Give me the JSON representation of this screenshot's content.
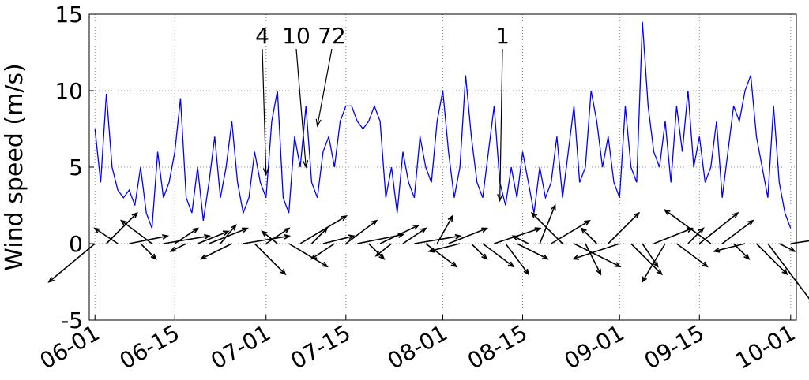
{
  "chart_data": {
    "type": "line",
    "ylabel": "Wind speed (m/s)",
    "ylim": [
      -5,
      15
    ],
    "yticks": [
      -5,
      0,
      5,
      10,
      15
    ],
    "xlim": [
      "05-31",
      "10-02"
    ],
    "xticks": [
      "06-01",
      "06-15",
      "07-01",
      "07-15",
      "08-01",
      "08-15",
      "09-01",
      "09-15",
      "10-01"
    ],
    "grid": true,
    "color": "#0000ff",
    "x": [
      "06-01",
      "06-02",
      "06-03",
      "06-04",
      "06-05",
      "06-06",
      "06-07",
      "06-08",
      "06-09",
      "06-10",
      "06-11",
      "06-12",
      "06-13",
      "06-14",
      "06-15",
      "06-16",
      "06-17",
      "06-18",
      "06-19",
      "06-20",
      "06-21",
      "06-22",
      "06-23",
      "06-24",
      "06-25",
      "06-26",
      "06-27",
      "06-28",
      "06-29",
      "06-30",
      "07-01",
      "07-02",
      "07-03",
      "07-04",
      "07-05",
      "07-06",
      "07-07",
      "07-08",
      "07-09",
      "07-10",
      "07-11",
      "07-12",
      "07-13",
      "07-14",
      "07-15",
      "07-16",
      "07-17",
      "07-18",
      "07-19",
      "07-20",
      "07-21",
      "07-22",
      "07-23",
      "07-24",
      "07-25",
      "07-26",
      "07-27",
      "07-28",
      "07-29",
      "07-30",
      "07-31",
      "08-01",
      "08-02",
      "08-03",
      "08-04",
      "08-05",
      "08-06",
      "08-07",
      "08-08",
      "08-09",
      "08-10",
      "08-11",
      "08-12",
      "08-13",
      "08-14",
      "08-15",
      "08-16",
      "08-17",
      "08-18",
      "08-19",
      "08-20",
      "08-21",
      "08-22",
      "08-23",
      "08-24",
      "08-25",
      "08-26",
      "08-27",
      "08-28",
      "08-29",
      "08-30",
      "08-31",
      "09-01",
      "09-02",
      "09-03",
      "09-04",
      "09-05",
      "09-06",
      "09-07",
      "09-08",
      "09-09",
      "09-10",
      "09-11",
      "09-12",
      "09-13",
      "09-14",
      "09-15",
      "09-16",
      "09-17",
      "09-18",
      "09-19",
      "09-20",
      "09-21",
      "09-22",
      "09-23",
      "09-24",
      "09-25",
      "09-26",
      "09-27",
      "09-28",
      "09-29",
      "09-30",
      "10-01"
    ],
    "values": [
      7.5,
      4,
      9.8,
      5,
      3.5,
      3,
      3.5,
      2.5,
      5,
      2,
      1,
      6,
      3,
      4,
      6,
      9.5,
      3,
      2,
      5,
      1.5,
      4,
      7,
      3,
      5,
      8,
      4,
      2,
      3,
      6,
      4,
      3,
      8,
      10,
      3,
      2,
      7,
      5,
      9,
      4,
      3,
      6,
      7,
      5,
      8,
      9,
      9,
      8,
      7.5,
      8,
      9,
      8,
      3,
      5,
      2,
      6,
      4,
      3,
      7,
      5,
      4,
      8,
      10,
      6,
      3,
      5,
      11,
      7,
      4,
      3,
      6,
      9,
      4,
      2.5,
      5,
      3,
      6,
      4,
      2,
      5,
      3,
      4,
      7,
      3,
      6,
      9,
      4,
      5,
      10,
      8,
      5,
      7,
      4,
      3,
      9,
      5,
      4,
      14.5,
      9,
      6,
      5,
      8,
      4,
      9,
      6,
      10,
      5,
      7,
      4,
      5,
      8,
      3,
      6,
      9,
      8,
      10,
      11,
      7,
      5,
      3,
      9,
      4,
      2,
      1
    ],
    "quiver": {
      "x": [
        "06-01",
        "06-03",
        "06-05",
        "06-07",
        "06-09",
        "06-11",
        "06-13",
        "06-15",
        "06-17",
        "06-19",
        "06-21",
        "06-23",
        "06-25",
        "06-27",
        "06-29",
        "07-01",
        "07-03",
        "07-05",
        "07-07",
        "07-09",
        "07-11",
        "07-13",
        "07-15",
        "07-17",
        "07-19",
        "07-21",
        "07-23",
        "07-25",
        "07-27",
        "07-29",
        "07-31",
        "08-02",
        "08-04",
        "08-06",
        "08-08",
        "08-10",
        "08-12",
        "08-14",
        "08-16",
        "08-18",
        "08-20",
        "08-22",
        "08-24",
        "08-26",
        "08-28",
        "08-30",
        "09-01",
        "09-03",
        "09-05",
        "09-07",
        "09-09",
        "09-11",
        "09-13",
        "09-15",
        "09-17",
        "09-19",
        "09-21",
        "09-23",
        "09-25",
        "09-27",
        "09-29",
        "10-01"
      ],
      "u": [
        -3,
        2,
        -1.5,
        2.5,
        1,
        -2,
        3,
        1.5,
        -1,
        2,
        2.5,
        1,
        -2,
        3,
        2,
        1.5,
        -1,
        2.5,
        3,
        1,
        2,
        -1.5,
        2,
        3,
        1,
        2.5,
        -1,
        1.5,
        3,
        2,
        1,
        2.5,
        -2,
        1,
        2,
        3,
        1.5,
        2,
        -1,
        1,
        2.5,
        -2,
        3,
        1,
        -1,
        2,
        -3,
        2,
        1,
        2.5,
        -1.5,
        2,
        1,
        2.5,
        -3,
        2,
        1,
        -2,
        2,
        3,
        1,
        2
      ],
      "v": [
        -2.5,
        2,
        1,
        0.5,
        -1,
        1.5,
        0.5,
        1,
        -0.5,
        0.8,
        1,
        1.2,
        -1,
        0.5,
        -2,
        1,
        0.8,
        -1.5,
        1.8,
        1,
        0.5,
        -1,
        1.5,
        0.6,
        -1,
        1.2,
        -0.8,
        1,
        0.5,
        -1.5,
        1.8,
        1,
        -0.5,
        -1,
        -1.5,
        1,
        -2,
        -1,
        0.5,
        2.5,
        1.5,
        2,
        -1.5,
        -2,
        1,
        2,
        -1,
        -2,
        -1.5,
        1,
        -2.5,
        -1.5,
        1,
        2,
        2.2,
        1.5,
        -1,
        -0.5,
        -2,
        -4,
        -0.5,
        0.3
      ],
      "color": "#000000"
    },
    "annotations": [
      {
        "label": "4",
        "x": "07-01",
        "y": 4.5
      },
      {
        "label": "10",
        "x": "07-08",
        "y": 5
      },
      {
        "label": "72",
        "x": "07-10",
        "y": 7.7
      },
      {
        "label": "1",
        "x": "08-11",
        "y": 2.8
      }
    ]
  }
}
